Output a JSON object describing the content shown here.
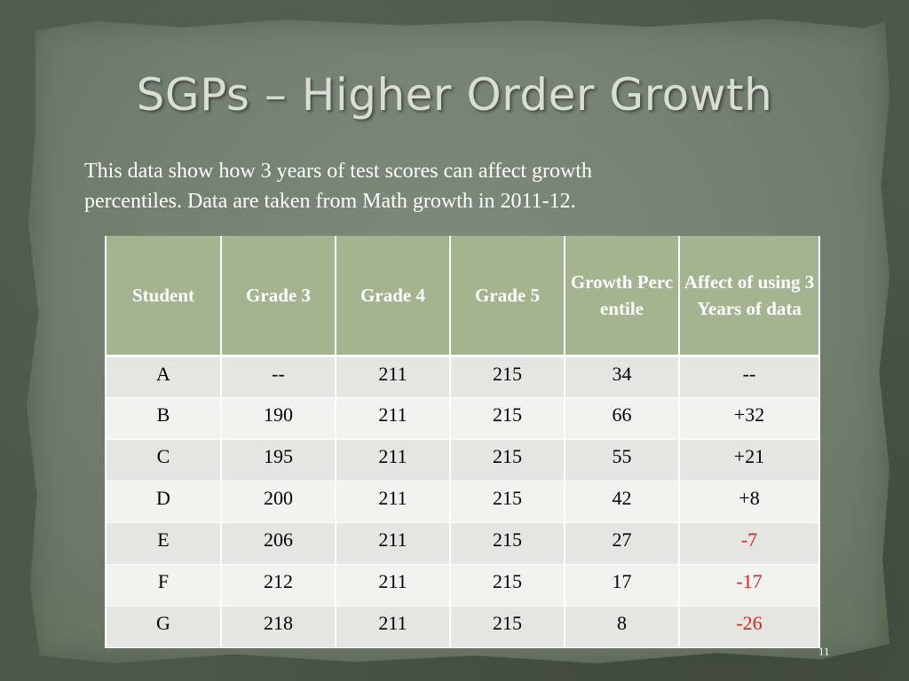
{
  "slide": {
    "title": "SGPs – Higher Order Growth",
    "intro_line1": "This data show how 3 years of test scores can affect growth",
    "intro_line2": "percentiles.  Data are taken from Math growth in 2011-12.",
    "slide_number": "11"
  },
  "table": {
    "headers": [
      "Student",
      "Grade 3",
      "Grade 4",
      "Grade 5",
      "Growth Percentile",
      "Affect of using 3 Years of data"
    ],
    "rows": [
      [
        "A",
        "--",
        "211",
        "215",
        "34",
        "--"
      ],
      [
        "B",
        "190",
        "211",
        "215",
        "66",
        "+32"
      ],
      [
        "C",
        "195",
        "211",
        "215",
        "55",
        "+21"
      ],
      [
        "D",
        "200",
        "211",
        "215",
        "42",
        "+8"
      ],
      [
        "E",
        "206",
        "211",
        "215",
        "27",
        "-7"
      ],
      [
        "F",
        "212",
        "211",
        "215",
        "17",
        "-17"
      ],
      [
        "G",
        "218",
        "211",
        "215",
        "8",
        "-26"
      ]
    ]
  },
  "colors": {
    "header_bg": "#a3b48f",
    "row_odd": "#e3e6e1",
    "row_even": "#f1f3ef",
    "negative_text": "#e8201c"
  }
}
